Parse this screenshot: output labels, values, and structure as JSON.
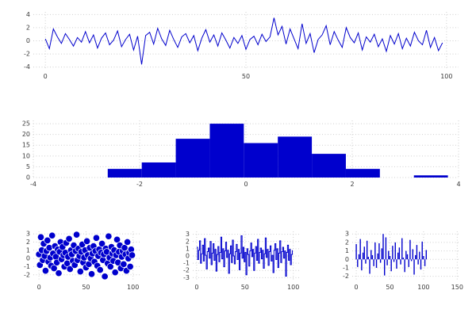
{
  "figure": {
    "background": "#ffffff",
    "accent": "#0000cd",
    "grid_color": "#cfcfcf",
    "tick_color": "#3a3a3a"
  },
  "chart_data": [
    {
      "id": "line",
      "type": "line",
      "title": "",
      "xlabel": "",
      "ylabel": "",
      "x_step": 1,
      "y": [
        0.3,
        -1.2,
        1.8,
        0.6,
        -0.4,
        1.1,
        0.2,
        -0.8,
        0.5,
        -0.2,
        1.4,
        -0.3,
        0.9,
        -1.1,
        0.4,
        1.2,
        -0.6,
        0.1,
        1.5,
        -0.9,
        0.2,
        1.0,
        -1.4,
        0.7,
        -3.6,
        0.8,
        1.3,
        -0.5,
        1.9,
        0.3,
        -0.7,
        1.6,
        0.2,
        -1.0,
        0.6,
        1.1,
        -0.3,
        0.8,
        -1.5,
        0.4,
        1.7,
        -0.2,
        0.9,
        -0.8,
        1.2,
        0.1,
        -1.1,
        0.5,
        -0.4,
        0.8,
        -1.3,
        0.2,
        0.7,
        -0.6,
        1.0,
        -0.1,
        0.6,
        3.5,
        0.9,
        2.2,
        -0.5,
        1.8,
        0.3,
        -1.2,
        2.6,
        -0.4,
        1.1,
        -1.8,
        0.2,
        0.9,
        2.3,
        -0.6,
        1.4,
        0.1,
        -1.0,
        2.0,
        0.5,
        -0.3,
        1.2,
        -1.4,
        0.6,
        -0.2,
        1.0,
        -0.9,
        0.3,
        -1.6,
        0.8,
        -0.5,
        1.1,
        -1.2,
        0.4,
        -0.8,
        1.3,
        0.0,
        -0.6,
        1.6,
        -1.0,
        0.5,
        -1.5,
        -0.3
      ],
      "xlim": [
        -3,
        103
      ],
      "ylim": [
        -4.4,
        4.4
      ],
      "xticks": [
        0,
        50,
        100
      ],
      "yticks": [
        -4,
        -2,
        0,
        2,
        4
      ],
      "grid": true
    },
    {
      "id": "histogram",
      "type": "histogram",
      "title": "",
      "xlabel": "",
      "ylabel": "",
      "bin_edges": [
        -2.6,
        -1.96,
        -1.32,
        -0.68,
        -0.04,
        0.6,
        1.24,
        1.88,
        2.52,
        3.16,
        3.8
      ],
      "counts": [
        4,
        7,
        18,
        25,
        16,
        19,
        11,
        4,
        0,
        1
      ],
      "xlim": [
        -4,
        4
      ],
      "ylim": [
        0,
        26.5
      ],
      "xticks": [
        -4,
        -2,
        0,
        2,
        4
      ],
      "yticks": [
        0,
        5,
        10,
        15,
        20,
        25
      ],
      "grid": true
    },
    {
      "id": "scatter",
      "type": "scatter",
      "title": "",
      "xlabel": "",
      "ylabel": "",
      "x_step": 1,
      "y": [
        0.5,
        -0.8,
        2.6,
        1.0,
        -0.2,
        1.8,
        0.3,
        -1.5,
        0.9,
        2.2,
        -0.4,
        1.3,
        0.1,
        -0.9,
        2.8,
        0.6,
        -1.2,
        1.5,
        0.2,
        -0.5,
        1.1,
        -1.8,
        0.8,
        2.0,
        -0.1,
        1.4,
        0.4,
        -1.0,
        0.7,
        1.9,
        -0.6,
        0.2,
        2.4,
        -1.3,
        1.0,
        0.5,
        -0.3,
        1.6,
        -0.8,
        0.9,
        2.9,
        -0.2,
        1.2,
        0.3,
        -1.6,
        0.8,
        1.7,
        -0.5,
        0.1,
        1.0,
        -1.1,
        2.1,
        0.4,
        -0.7,
        1.3,
        0.0,
        -1.9,
        0.6,
        1.5,
        -0.4,
        0.9,
        2.5,
        -0.9,
        0.3,
        1.1,
        -1.4,
        0.7,
        1.8,
        -0.2,
        0.5,
        -2.2,
        1.2,
        0.8,
        -0.6,
        2.7,
        0.1,
        -1.0,
        1.4,
        0.6,
        -0.3,
        1.0,
        -1.7,
        0.4,
        2.3,
        -0.5,
        0.8,
        1.6,
        -1.2,
        0.2,
        0.9,
        -0.7,
        1.3,
        0.5,
        -1.5,
        2.0,
        0.0,
        0.7,
        -1.0,
        1.1,
        0.4
      ],
      "xlim": [
        -6,
        107
      ],
      "ylim": [
        -2.7,
        3.3
      ],
      "xticks": [
        0,
        50,
        100
      ],
      "yticks": [
        -2,
        -1,
        0,
        1,
        2,
        3
      ],
      "grid": true
    },
    {
      "id": "steps",
      "type": "step",
      "title": "",
      "xlabel": "",
      "ylabel": "",
      "x_step": 1,
      "y": [
        1.2,
        -0.5,
        0.8,
        2.1,
        -1.0,
        0.3,
        1.5,
        -0.7,
        2.4,
        0.1,
        -1.8,
        0.6,
        1.1,
        -0.3,
        2.0,
        -1.2,
        0.4,
        1.7,
        -0.6,
        0.9,
        -2.1,
        0.2,
        1.3,
        -0.8,
        0.5,
        2.6,
        -0.4,
        1.0,
        -1.5,
        0.7,
        1.9,
        -0.2,
        0.8,
        -2.4,
        0.3,
        1.4,
        -0.9,
        2.2,
        0.0,
        -1.1,
        0.6,
        1.6,
        -0.5,
        0.9,
        -1.9,
        0.4,
        2.8,
        -0.3,
        1.2,
        -0.8,
        0.5,
        -2.6,
        1.0,
        0.2,
        -1.4,
        0.7,
        1.8,
        -0.1,
        0.9,
        -2.0,
        0.4,
        1.3,
        -0.6,
        2.3,
        -1.0,
        0.5,
        1.1,
        -0.4,
        0.8,
        -1.7,
        0.3,
        2.5,
        -0.2,
        0.9,
        -1.3,
        0.6,
        1.4,
        -0.7,
        0.1,
        -2.3,
        0.8,
        1.7,
        -0.5,
        1.0,
        -1.6,
        0.4,
        2.1,
        -0.9,
        0.6,
        1.2,
        -0.3,
        0.7,
        -2.8,
        0.5,
        1.5,
        -0.6,
        0.9,
        -1.2,
        0.2,
        0.8
      ],
      "xlim": [
        -4,
        106
      ],
      "ylim": [
        -3.4,
        3.4
      ],
      "xticks": [
        0,
        50,
        100
      ],
      "yticks": [
        -3,
        -2,
        -1,
        0,
        1,
        2,
        3
      ],
      "grid": true
    },
    {
      "id": "stems",
      "type": "stem",
      "title": "",
      "xlabel": "",
      "ylabel": "",
      "x_step": 2,
      "y": [
        1.8,
        -0.9,
        0.6,
        2.4,
        -1.3,
        0.8,
        1.5,
        -0.5,
        2.2,
        0.3,
        -1.7,
        1.1,
        0.5,
        -0.8,
        2.0,
        -1.0,
        0.7,
        1.9,
        -0.4,
        1.3,
        3.0,
        -1.9,
        2.6,
        -0.7,
        1.0,
        0.4,
        -1.4,
        1.6,
        -0.3,
        2.0,
        -1.1,
        0.8,
        1.4,
        -0.6,
        2.5,
        0.2,
        -1.5,
        1.0,
        0.6,
        -0.9,
        2.3,
        -0.2,
        1.2,
        -1.8,
        0.5,
        1.7,
        -0.6,
        0.9,
        -1.2,
        2.1,
        0.4,
        -0.8,
        1.1
      ],
      "xlim": [
        -6,
        152
      ],
      "ylim": [
        -2.5,
        3.3
      ],
      "xticks": [
        0,
        50,
        100,
        150
      ],
      "yticks": [
        -2,
        -1,
        0,
        1,
        2,
        3
      ],
      "grid": true
    }
  ]
}
